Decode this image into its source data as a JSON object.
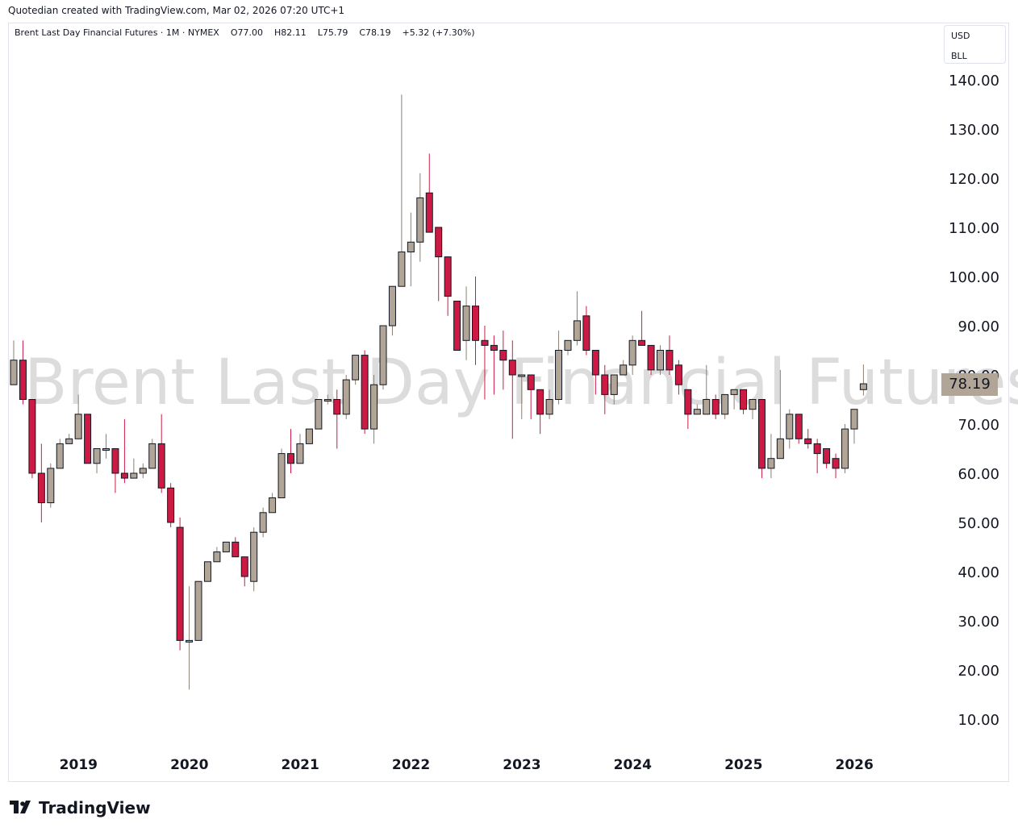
{
  "header": {
    "caption": "Quotedian created with TradingView.com, Mar 02, 2026 07:20 UTC+1"
  },
  "legend": {
    "symbol": "Brent Last Day Financial Futures · 1M · NYMEX",
    "open": "O77.00",
    "high": "H82.11",
    "low": "L75.79",
    "close": "C78.19",
    "change": "+5.32 (+7.30%)"
  },
  "scale_box": {
    "currency": "USD",
    "ticker": "BLL"
  },
  "watermark": "Brent Last Day Financial Futures",
  "last_price": "78.19",
  "brand": {
    "name": "TradingView"
  },
  "colors": {
    "up": "#b0a596",
    "down": "#cc1a44",
    "outline": "#131722"
  },
  "chart_data": {
    "type": "candlestick",
    "interval": "1M",
    "yticks": [
      "10.00",
      "20.00",
      "30.00",
      "40.00",
      "50.00",
      "60.00",
      "70.00",
      "80.00",
      "90.00",
      "100.00",
      "110.00",
      "120.00",
      "130.00",
      "140.00"
    ],
    "xticks": [
      "2019",
      "2020",
      "2021",
      "2022",
      "2023",
      "2024",
      "2025",
      "2026"
    ],
    "ylim": [
      2,
      147
    ],
    "candles": [
      {
        "d": "2018-10",
        "o": 78,
        "h": 87,
        "l": 78,
        "c": 83
      },
      {
        "d": "2018-11",
        "o": 83,
        "h": 87,
        "l": 74,
        "c": 75
      },
      {
        "d": "2018-12",
        "o": 75,
        "h": 75,
        "l": 59,
        "c": 60
      },
      {
        "d": "2019-01",
        "o": 60,
        "h": 66,
        "l": 50,
        "c": 54
      },
      {
        "d": "2019-02",
        "o": 54,
        "h": 62,
        "l": 53,
        "c": 61
      },
      {
        "d": "2019-03",
        "o": 61,
        "h": 67,
        "l": 61,
        "c": 66
      },
      {
        "d": "2019-04",
        "o": 66,
        "h": 68,
        "l": 66,
        "c": 67
      },
      {
        "d": "2019-05",
        "o": 67,
        "h": 76,
        "l": 67,
        "c": 72
      },
      {
        "d": "2019-06",
        "o": 72,
        "h": 72,
        "l": 62,
        "c": 62
      },
      {
        "d": "2019-07",
        "o": 62,
        "h": 65,
        "l": 60,
        "c": 65
      },
      {
        "d": "2019-08",
        "o": 65,
        "h": 68,
        "l": 63,
        "c": 65
      },
      {
        "d": "2019-09",
        "o": 65,
        "h": 64,
        "l": 56,
        "c": 60
      },
      {
        "d": "2019-10",
        "o": 60,
        "h": 71,
        "l": 58,
        "c": 59
      },
      {
        "d": "2019-11",
        "o": 59,
        "h": 63,
        "l": 59,
        "c": 60
      },
      {
        "d": "2019-12",
        "o": 60,
        "h": 62,
        "l": 59,
        "c": 61
      },
      {
        "d": "2020-01",
        "o": 61,
        "h": 67,
        "l": 61,
        "c": 66
      },
      {
        "d": "2020-02",
        "o": 66,
        "h": 72,
        "l": 56,
        "c": 57
      },
      {
        "d": "2020-03",
        "o": 57,
        "h": 58,
        "l": 49,
        "c": 50
      },
      {
        "d": "2020-04",
        "o": 49,
        "h": 51,
        "l": 24,
        "c": 26
      },
      {
        "d": "2020-05",
        "o": 26,
        "h": 37,
        "l": 16,
        "c": 26
      },
      {
        "d": "2020-06",
        "o": 26,
        "h": 38,
        "l": 26,
        "c": 38
      },
      {
        "d": "2020-07",
        "o": 38,
        "h": 42,
        "l": 38,
        "c": 42
      },
      {
        "d": "2020-08",
        "o": 42,
        "h": 45,
        "l": 42,
        "c": 44
      },
      {
        "d": "2020-09",
        "o": 44,
        "h": 46,
        "l": 44,
        "c": 46
      },
      {
        "d": "2020-10",
        "o": 46,
        "h": 47,
        "l": 43,
        "c": 43
      },
      {
        "d": "2020-11",
        "o": 43,
        "h": 43,
        "l": 37,
        "c": 39
      },
      {
        "d": "2020-12",
        "o": 38,
        "h": 49,
        "l": 36,
        "c": 48
      },
      {
        "d": "2021-01",
        "o": 48,
        "h": 53,
        "l": 47,
        "c": 52
      },
      {
        "d": "2021-02",
        "o": 52,
        "h": 56,
        "l": 52,
        "c": 55
      },
      {
        "d": "2021-03",
        "o": 55,
        "h": 65,
        "l": 55,
        "c": 64
      },
      {
        "d": "2021-04",
        "o": 64,
        "h": 69,
        "l": 60,
        "c": 62
      },
      {
        "d": "2021-05",
        "o": 62,
        "h": 68,
        "l": 62,
        "c": 66
      },
      {
        "d": "2021-06",
        "o": 66,
        "h": 69,
        "l": 66,
        "c": 69
      },
      {
        "d": "2021-07",
        "o": 69,
        "h": 75,
        "l": 69,
        "c": 75
      },
      {
        "d": "2021-08",
        "o": 75,
        "h": 76,
        "l": 74,
        "c": 75
      },
      {
        "d": "2021-09",
        "o": 75,
        "h": 77,
        "l": 65,
        "c": 72
      },
      {
        "d": "2021-10",
        "o": 72,
        "h": 80,
        "l": 71,
        "c": 79
      },
      {
        "d": "2021-11",
        "o": 79,
        "h": 84,
        "l": 78,
        "c": 84
      },
      {
        "d": "2021-12",
        "o": 84,
        "h": 85,
        "l": 68,
        "c": 69
      },
      {
        "d": "2022-01",
        "o": 69,
        "h": 80,
        "l": 66,
        "c": 78
      },
      {
        "d": "2022-02",
        "o": 78,
        "h": 90,
        "l": 77,
        "c": 90
      },
      {
        "d": "2022-03",
        "o": 90,
        "h": 98,
        "l": 88,
        "c": 98
      },
      {
        "d": "2022-04",
        "o": 98,
        "h": 137,
        "l": 98,
        "c": 105
      },
      {
        "d": "2022-05",
        "o": 105,
        "h": 113,
        "l": 98,
        "c": 107
      },
      {
        "d": "2022-06",
        "o": 107,
        "h": 121,
        "l": 103,
        "c": 116
      },
      {
        "d": "2022-07",
        "o": 117,
        "h": 125,
        "l": 109,
        "c": 109
      },
      {
        "d": "2022-08",
        "o": 110,
        "h": 110,
        "l": 95,
        "c": 104
      },
      {
        "d": "2022-09",
        "o": 104,
        "h": 104,
        "l": 92,
        "c": 96
      },
      {
        "d": "2022-10",
        "o": 95,
        "h": 95,
        "l": 85,
        "c": 85
      },
      {
        "d": "2022-11",
        "o": 87,
        "h": 98,
        "l": 83,
        "c": 94
      },
      {
        "d": "2022-12",
        "o": 94,
        "h": 100,
        "l": 82,
        "c": 87
      },
      {
        "d": "2023-01",
        "o": 87,
        "h": 90,
        "l": 75,
        "c": 86
      },
      {
        "d": "2023-02",
        "o": 86,
        "h": 88,
        "l": 76,
        "c": 85
      },
      {
        "d": "2023-03",
        "o": 85,
        "h": 89,
        "l": 77,
        "c": 83
      },
      {
        "d": "2023-04",
        "o": 83,
        "h": 87,
        "l": 67,
        "c": 80
      },
      {
        "d": "2023-05",
        "o": 80,
        "h": 80,
        "l": 71,
        "c": 80
      },
      {
        "d": "2023-06",
        "o": 80,
        "h": 80,
        "l": 71,
        "c": 77
      },
      {
        "d": "2023-07",
        "o": 77,
        "h": 77,
        "l": 68,
        "c": 72
      },
      {
        "d": "2023-08",
        "o": 72,
        "h": 77,
        "l": 71,
        "c": 75
      },
      {
        "d": "2023-09",
        "o": 75,
        "h": 89,
        "l": 74,
        "c": 85
      },
      {
        "d": "2023-10",
        "o": 85,
        "h": 87,
        "l": 84,
        "c": 87
      },
      {
        "d": "2023-11",
        "o": 87,
        "h": 97,
        "l": 86,
        "c": 91
      },
      {
        "d": "2023-12",
        "o": 92,
        "h": 94,
        "l": 84,
        "c": 85
      },
      {
        "d": "2024-01",
        "o": 85,
        "h": 85,
        "l": 76,
        "c": 80
      },
      {
        "d": "2024-02",
        "o": 80,
        "h": 82,
        "l": 72,
        "c": 76
      },
      {
        "d": "2024-03",
        "o": 76,
        "h": 80,
        "l": 74,
        "c": 80
      },
      {
        "d": "2024-04",
        "o": 80,
        "h": 83,
        "l": 80,
        "c": 82
      },
      {
        "d": "2024-05",
        "o": 82,
        "h": 88,
        "l": 80,
        "c": 87
      },
      {
        "d": "2024-06",
        "o": 87,
        "h": 93,
        "l": 86,
        "c": 86
      },
      {
        "d": "2024-07",
        "o": 86,
        "h": 86,
        "l": 80,
        "c": 81
      },
      {
        "d": "2024-08",
        "o": 81,
        "h": 86,
        "l": 80,
        "c": 85
      },
      {
        "d": "2024-09",
        "o": 85,
        "h": 88,
        "l": 80,
        "c": 81
      },
      {
        "d": "2024-10",
        "o": 82,
        "h": 83,
        "l": 76,
        "c": 78
      },
      {
        "d": "2024-11",
        "o": 77,
        "h": 77,
        "l": 69,
        "c": 72
      },
      {
        "d": "2024-12",
        "o": 72,
        "h": 74,
        "l": 72,
        "c": 73
      },
      {
        "d": "2025-01",
        "o": 72,
        "h": 82,
        "l": 72,
        "c": 75
      },
      {
        "d": "2025-02",
        "o": 75,
        "h": 76,
        "l": 71,
        "c": 72
      },
      {
        "d": "2025-03",
        "o": 72,
        "h": 76,
        "l": 71,
        "c": 76
      },
      {
        "d": "2025-04",
        "o": 76,
        "h": 77,
        "l": 73,
        "c": 77
      },
      {
        "d": "2025-05",
        "o": 77,
        "h": 77,
        "l": 72,
        "c": 73
      },
      {
        "d": "2025-06",
        "o": 73,
        "h": 75,
        "l": 71,
        "c": 75
      },
      {
        "d": "2025-07",
        "o": 75,
        "h": 75,
        "l": 59,
        "c": 61
      },
      {
        "d": "2025-08",
        "o": 61,
        "h": 68,
        "l": 59,
        "c": 63
      },
      {
        "d": "2025-09",
        "o": 63,
        "h": 81,
        "l": 63,
        "c": 67
      },
      {
        "d": "2025-10",
        "o": 67,
        "h": 73,
        "l": 65,
        "c": 72
      },
      {
        "d": "2025-11",
        "o": 72,
        "h": 72,
        "l": 66,
        "c": 67
      },
      {
        "d": "2025-12",
        "o": 67,
        "h": 69,
        "l": 65,
        "c": 66
      },
      {
        "d": "2026-01",
        "o": 66,
        "h": 67,
        "l": 60,
        "c": 64
      },
      {
        "d": "2026-02",
        "o": 65,
        "h": 65,
        "l": 61,
        "c": 62
      },
      {
        "d": "2026-03",
        "o": 63,
        "h": 64,
        "l": 59,
        "c": 61
      },
      {
        "d": "2026-04",
        "o": 61,
        "h": 70,
        "l": 60,
        "c": 69
      },
      {
        "d": "2026-05",
        "o": 69,
        "h": 73,
        "l": 66,
        "c": 73
      },
      {
        "d": "2026-06",
        "o": 77,
        "h": 82.11,
        "l": 75.79,
        "c": 78.19
      }
    ]
  }
}
